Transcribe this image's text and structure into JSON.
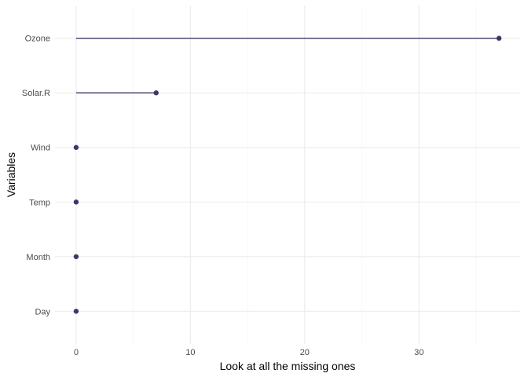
{
  "chart_data": {
    "type": "lollipop",
    "orientation": "horizontal",
    "categories": [
      "Ozone",
      "Solar.R",
      "Wind",
      "Temp",
      "Month",
      "Day"
    ],
    "values": [
      37,
      7,
      0,
      0,
      0,
      0
    ],
    "xlabel": "Look at all the missing ones",
    "ylabel": "Variables",
    "xlim": [
      -1.85,
      38.85
    ],
    "xticks": [
      0,
      10,
      20,
      30
    ],
    "x_minor_gridlines": [
      5,
      15,
      25,
      35
    ],
    "grid": true,
    "legend": "none",
    "colors": {
      "mark": "#3d3768",
      "grid_major": "#ebebeb",
      "grid_minor": "#f2f2f2",
      "tick_text": "#4d4d4d",
      "title_text": "#000000"
    }
  }
}
